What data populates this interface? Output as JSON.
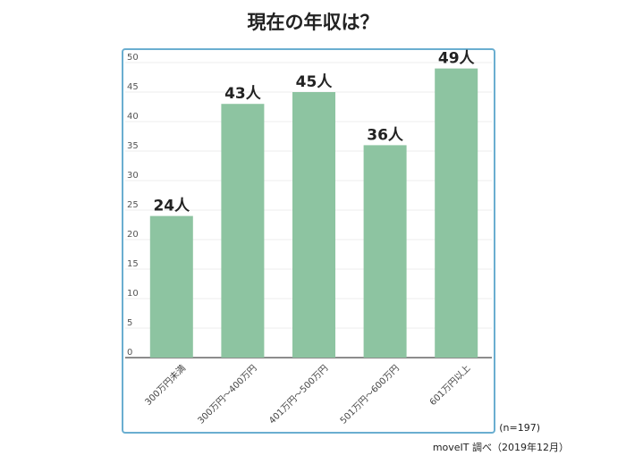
{
  "chart_data": {
    "type": "bar",
    "title": "現在の年収は？",
    "categories": [
      "300万円未満",
      "300万円～400万円",
      "401万円～500万円",
      "501万円～600万円",
      "601万円以上"
    ],
    "values": [
      24,
      43,
      45,
      36,
      49
    ],
    "value_labels": [
      "24人",
      "43人",
      "45人",
      "36人",
      "49人"
    ],
    "color": "#8dc4a1",
    "ylim": [
      0,
      50
    ],
    "yticks": [
      0,
      5,
      10,
      15,
      20,
      25,
      30,
      35,
      40,
      45,
      50
    ],
    "grid": true,
    "note": "(n=197)",
    "source": "moveIT 調べ（2019年12月）"
  }
}
